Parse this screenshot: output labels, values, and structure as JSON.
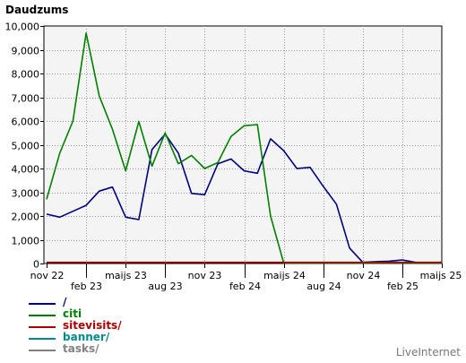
{
  "chart_data": {
    "type": "line",
    "title": "Daudzums",
    "ylim": [
      0,
      10000
    ],
    "yticks": [
      {
        "value": 0,
        "label": "0"
      },
      {
        "value": 1000,
        "label": "1,000"
      },
      {
        "value": 2000,
        "label": "2,000"
      },
      {
        "value": 3000,
        "label": "3,000"
      },
      {
        "value": 4000,
        "label": "4,000"
      },
      {
        "value": 5000,
        "label": "5,000"
      },
      {
        "value": 6000,
        "label": "6,000"
      },
      {
        "value": 7000,
        "label": "7,000"
      },
      {
        "value": 8000,
        "label": "8,000"
      },
      {
        "value": 9000,
        "label": "9,000"
      },
      {
        "value": 10000,
        "label": "10,000"
      }
    ],
    "x_months": [
      "2022-11",
      "2022-12",
      "2023-01",
      "2023-02",
      "2023-03",
      "2023-04",
      "2023-05",
      "2023-06",
      "2023-07",
      "2023-08",
      "2023-09",
      "2023-10",
      "2023-11",
      "2023-12",
      "2024-01",
      "2024-02",
      "2024-03",
      "2024-04",
      "2024-05",
      "2024-06",
      "2024-07",
      "2024-08",
      "2024-09",
      "2024-10",
      "2024-11",
      "2024-12",
      "2025-01",
      "2025-02",
      "2025-03",
      "2025-04",
      "2025-05"
    ],
    "xticks": [
      {
        "label": "nov 22",
        "month": "2022-11",
        "row": 0
      },
      {
        "label": "feb 23",
        "month": "2023-02",
        "row": 1
      },
      {
        "label": "maijs 23",
        "month": "2023-05",
        "row": 0
      },
      {
        "label": "aug 23",
        "month": "2023-08",
        "row": 1
      },
      {
        "label": "nov 23",
        "month": "2023-11",
        "row": 0
      },
      {
        "label": "feb 24",
        "month": "2024-02",
        "row": 1
      },
      {
        "label": "maijs 24",
        "month": "2024-05",
        "row": 0
      },
      {
        "label": "aug 24",
        "month": "2024-08",
        "row": 1
      },
      {
        "label": "nov 24",
        "month": "2024-11",
        "row": 0
      },
      {
        "label": "feb 25",
        "month": "2025-02",
        "row": 1
      },
      {
        "label": "maijs 25",
        "month": "2025-05",
        "row": 0
      }
    ],
    "series": [
      {
        "name": "/",
        "color": "#000080",
        "values": [
          2080,
          1950,
          2200,
          2450,
          3050,
          3220,
          1950,
          1850,
          4800,
          5450,
          4650,
          2950,
          2900,
          4200,
          4400,
          3900,
          3800,
          5250,
          4750,
          4000,
          4050,
          3250,
          2500,
          650,
          50,
          80,
          100,
          150,
          50,
          40,
          50
        ]
      },
      {
        "name": "citi",
        "color": "#008000",
        "values": [
          2700,
          4650,
          6000,
          9700,
          7050,
          5650,
          3900,
          5980,
          4100,
          5500,
          4200,
          4550,
          4000,
          4250,
          5350,
          5800,
          5850,
          2000,
          20,
          20,
          20,
          20,
          20,
          20,
          20,
          20,
          20,
          20,
          20,
          20,
          20
        ]
      },
      {
        "name": "sitevisits/",
        "color": "#aa0000",
        "values": [
          50,
          50,
          50,
          50,
          50,
          50,
          50,
          50,
          50,
          50,
          50,
          50,
          50,
          50,
          50,
          50,
          50,
          50,
          50,
          50,
          50,
          50,
          50,
          50,
          50,
          50,
          50,
          50,
          50,
          50,
          50
        ]
      },
      {
        "name": "banner/",
        "color": "#008b8b",
        "values": []
      },
      {
        "name": "tasks/",
        "color": "#808080",
        "values": []
      }
    ],
    "grid": true,
    "legend_position": "bottom-left"
  },
  "brand": "LiveInternet"
}
